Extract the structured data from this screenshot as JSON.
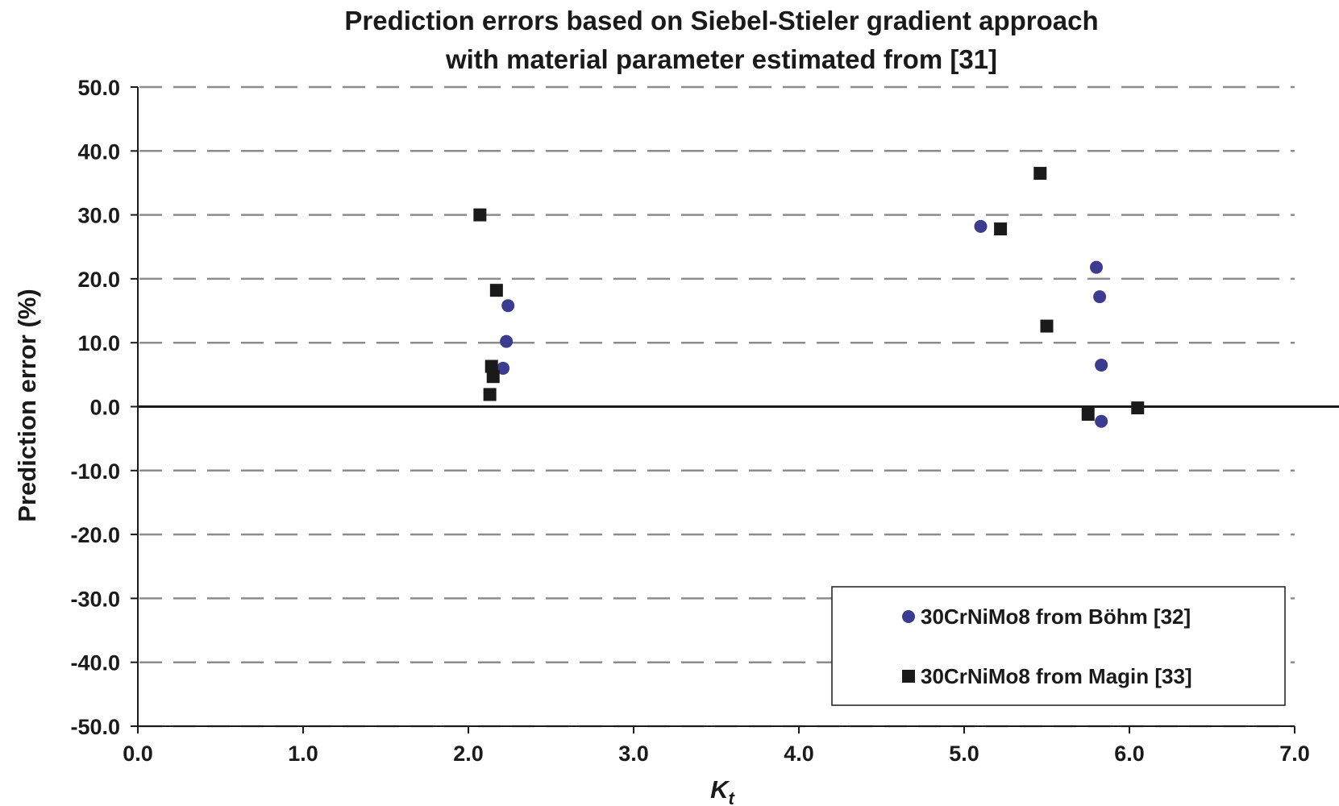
{
  "chart_data": {
    "type": "scatter",
    "title": "Prediction errors based on Siebel-Stieler gradient approach",
    "subtitle": "with material parameter estimated from [31]",
    "xlabel": "K",
    "xlabel_sub": "t",
    "ylabel": "Prediction error (%)",
    "xlim": [
      0,
      7
    ],
    "ylim": [
      -50,
      50
    ],
    "x_ticks": [
      0,
      1,
      2,
      3,
      4,
      5,
      6,
      7
    ],
    "x_tick_labels": [
      "0.0",
      "1.0",
      "2.0",
      "3.0",
      "4.0",
      "5.0",
      "6.0",
      "7.0"
    ],
    "y_ticks": [
      50,
      40,
      30,
      20,
      10,
      0,
      -10,
      -20,
      -30,
      -40,
      -50
    ],
    "y_tick_labels": [
      "50.0",
      "40.0",
      "30.0",
      "20.0",
      "10.0",
      "0.0",
      "-10.0",
      "-20.0",
      "-30.0",
      "-40.0",
      "-50.0"
    ],
    "grid": "horizontal dashed",
    "legend_position": "bottom-right",
    "series": [
      {
        "name": "30CrNiMo8 from Böhm [32]",
        "marker": "circle",
        "color": "#3b3b8f",
        "points": [
          {
            "x": 2.24,
            "y": 15.8
          },
          {
            "x": 2.23,
            "y": 10.2
          },
          {
            "x": 2.21,
            "y": 6.0
          },
          {
            "x": 5.1,
            "y": 28.2
          },
          {
            "x": 5.8,
            "y": 21.8
          },
          {
            "x": 5.82,
            "y": 17.2
          },
          {
            "x": 5.83,
            "y": 6.5
          },
          {
            "x": 5.83,
            "y": -2.3
          }
        ]
      },
      {
        "name": "30CrNiMo8 from Magin [33]",
        "marker": "square",
        "color": "#1a1a1a",
        "points": [
          {
            "x": 2.07,
            "y": 30.0
          },
          {
            "x": 2.17,
            "y": 18.2
          },
          {
            "x": 2.14,
            "y": 6.3
          },
          {
            "x": 2.15,
            "y": 4.7
          },
          {
            "x": 2.13,
            "y": 1.9
          },
          {
            "x": 5.22,
            "y": 27.8
          },
          {
            "x": 5.46,
            "y": 36.5
          },
          {
            "x": 5.5,
            "y": 12.6
          },
          {
            "x": 5.75,
            "y": -1.2
          },
          {
            "x": 6.05,
            "y": -0.2
          }
        ]
      }
    ]
  }
}
